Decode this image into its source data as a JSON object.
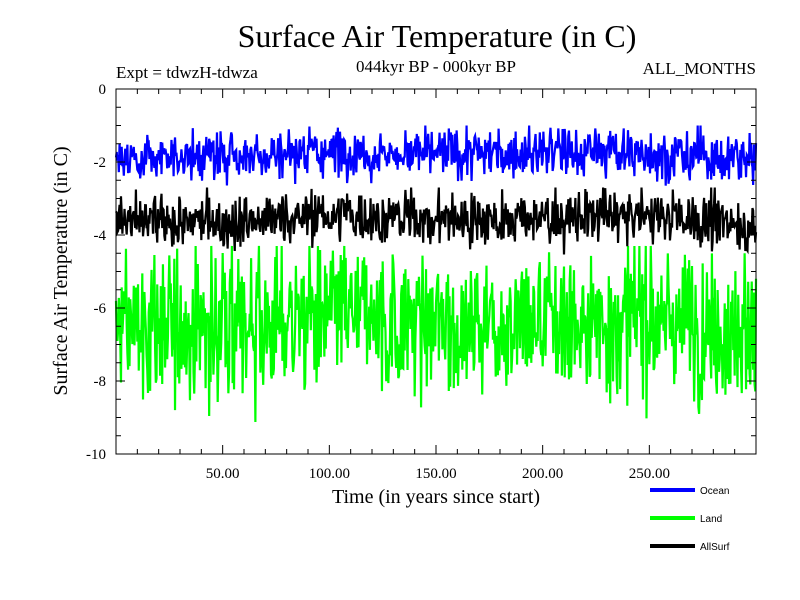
{
  "chart_data": {
    "type": "line",
    "title": "Surface Air Temperature (in C)",
    "subtitle": "044kyr BP - 000kyr BP",
    "left_annotation": "Expt = tdwzH-tdwza",
    "right_annotation": "ALL_MONTHS",
    "xlabel": "Time (in years since start)",
    "ylabel": "Surface Air Temperature (in C)",
    "xlim": [
      0,
      300
    ],
    "ylim": [
      -10,
      0
    ],
    "x_ticks": [
      50,
      100,
      150,
      200,
      250
    ],
    "x_tick_labels": [
      "50.00",
      "100.00",
      "150.00",
      "200.00",
      "250.00"
    ],
    "y_ticks": [
      0,
      -2,
      -4,
      -6,
      -8,
      -10
    ],
    "y_tick_labels": [
      "0",
      "-2",
      "-4",
      "-6",
      "-8",
      "-10"
    ],
    "grid": false,
    "legend_position": "bottom-right",
    "series": [
      {
        "name": "Ocean",
        "color": "#0000ff",
        "mean": -1.85,
        "min": -2.7,
        "max": -1.0,
        "approx_envelope": {
          "x": [
            0,
            50,
            100,
            150,
            200,
            250,
            300
          ],
          "low": [
            -2.5,
            -2.4,
            -2.3,
            -2.4,
            -2.3,
            -2.4,
            -2.6
          ],
          "high": [
            -1.3,
            -1.2,
            -1.1,
            -1.2,
            -1.1,
            -1.1,
            -1.3
          ]
        }
      },
      {
        "name": "Land",
        "color": "#00ff00",
        "mean": -6.4,
        "min": -9.6,
        "max": -4.3,
        "approx_envelope": {
          "x": [
            0,
            50,
            100,
            150,
            200,
            250,
            300
          ],
          "low": [
            -8.3,
            -8.4,
            -8.0,
            -8.2,
            -8.2,
            -8.1,
            -8.4
          ],
          "high": [
            -4.8,
            -4.6,
            -4.5,
            -4.7,
            -4.6,
            -4.5,
            -4.8
          ]
        }
      },
      {
        "name": "AllSurf",
        "color": "#000000",
        "mean": -3.65,
        "min": -4.6,
        "max": -2.7,
        "approx_envelope": {
          "x": [
            0,
            50,
            100,
            150,
            200,
            250,
            300
          ],
          "low": [
            -4.3,
            -4.3,
            -4.1,
            -4.2,
            -4.2,
            -4.1,
            -4.4
          ],
          "high": [
            -3.0,
            -3.0,
            -2.8,
            -2.9,
            -2.9,
            -2.8,
            -3.1
          ]
        }
      }
    ]
  }
}
